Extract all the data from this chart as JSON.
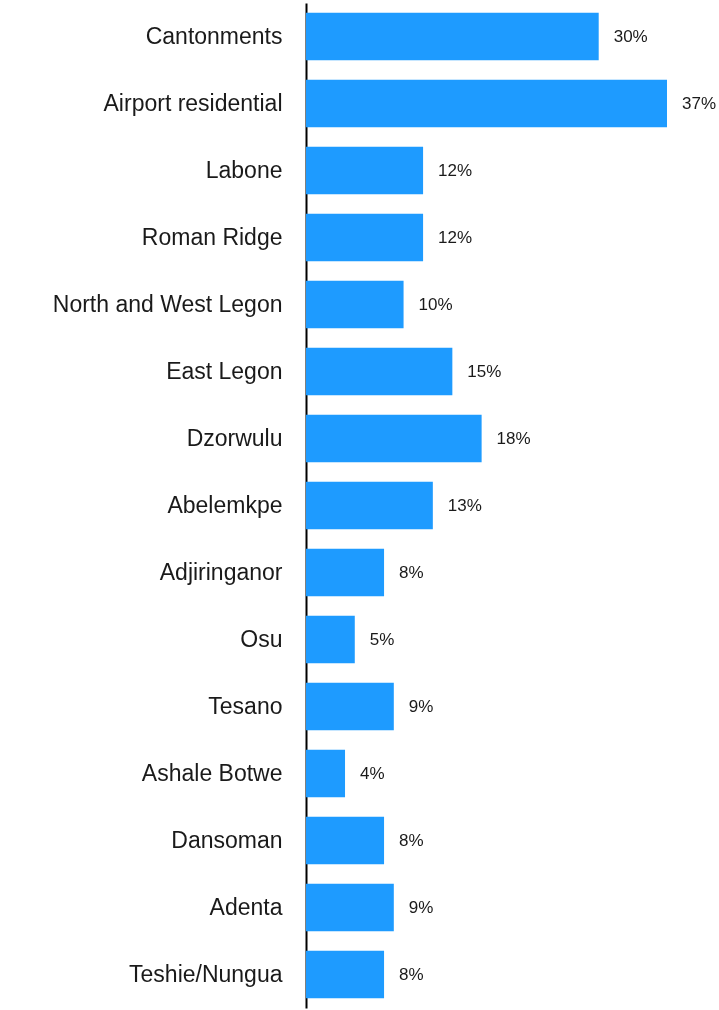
{
  "chart_data": {
    "type": "bar",
    "orientation": "horizontal",
    "categories": [
      "Cantonments",
      "Airport residential",
      "Labone",
      "Roman Ridge",
      "North and West Legon",
      "East Legon",
      "Dzorwulu",
      "Abelemkpe",
      "Adjiringanor",
      "Osu",
      "Tesano",
      "Ashale Botwe",
      "Dansoman",
      "Adenta",
      "Teshie/Nungua"
    ],
    "values": [
      30,
      37,
      12,
      12,
      10,
      15,
      18,
      13,
      8,
      5,
      9,
      4,
      8,
      9,
      8
    ],
    "value_labels": [
      "30%",
      "37%",
      "12%",
      "12%",
      "10%",
      "15%",
      "18%",
      "13%",
      "8%",
      "5%",
      "9%",
      "4%",
      "8%",
      "9%",
      "8%"
    ],
    "color": "#1e9bff"
  }
}
